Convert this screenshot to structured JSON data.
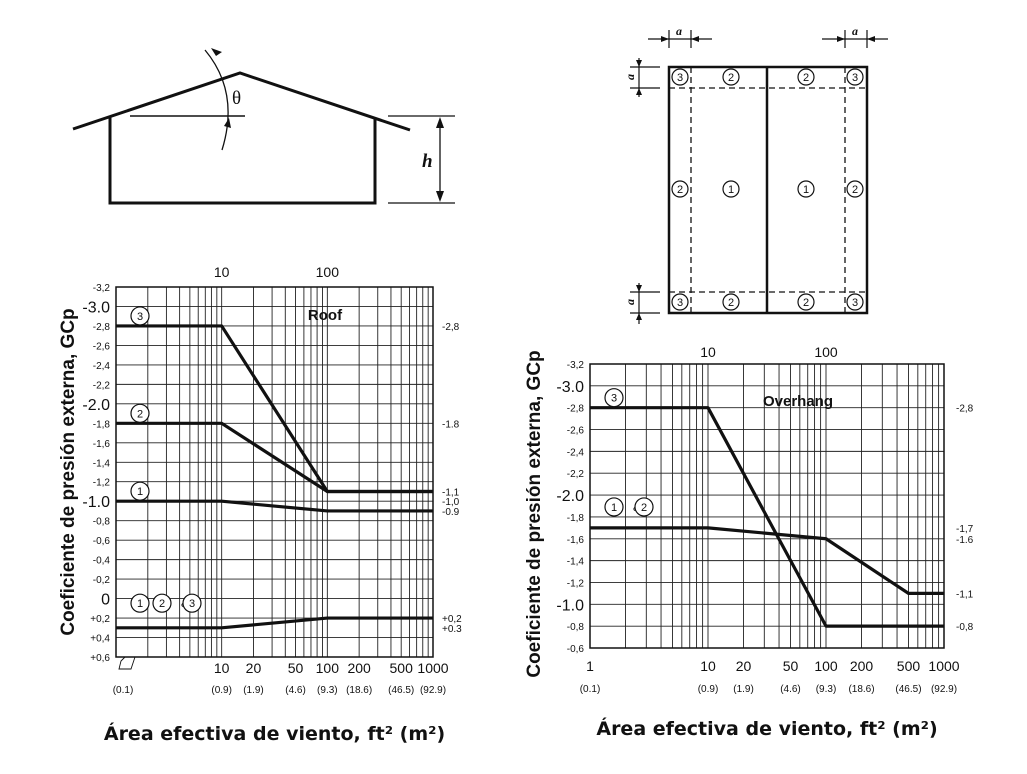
{
  "theta_label": "θ",
  "h_label": "h",
  "a_label": "a",
  "zone_labels": {
    "z1": "1",
    "z2": "2",
    "z3": "3"
  },
  "chart_data": [
    {
      "type": "line",
      "x_scale": "log",
      "title": "Roof",
      "ylabel": "Coeficiente de presión externa, GCp",
      "xlabel": "Área efectiva de viento, ft² (m²)",
      "xlim": [
        1,
        1000
      ],
      "ylim": [
        -3.2,
        0.6
      ],
      "y_reversed": true,
      "top_ticks": [
        "10",
        "100"
      ],
      "x_ticks": [
        {
          "x": 10,
          "label": "10",
          "sub": "(0.9)"
        },
        {
          "x": 20,
          "label": "20",
          "sub": "(1.9)"
        },
        {
          "x": 50,
          "label": "50",
          "sub": "(4.6)"
        },
        {
          "x": 100,
          "label": "100",
          "sub": "(9.3)"
        },
        {
          "x": 200,
          "label": "200",
          "sub": "(18.6)"
        },
        {
          "x": 500,
          "label": "500",
          "sub": "(46.5)"
        },
        {
          "x": 1000,
          "label": "1000",
          "sub": "(92.9)"
        }
      ],
      "x1_sub": "(0.1)",
      "y_ticks": [
        "-3,2",
        "-3.0",
        "-2,8",
        "-2,6",
        "-2,4",
        "-2,2",
        "-2.0",
        "-1,8",
        "-1,6",
        "-1,4",
        "-1,2",
        "-1.0",
        "-0,8",
        "-0,6",
        "-0,4",
        "-0,2",
        "0",
        "+0,2",
        "+0,4",
        "+0,6"
      ],
      "y_tick_values": [
        -3.2,
        -3.0,
        -2.8,
        -2.6,
        -2.4,
        -2.2,
        -2.0,
        -1.8,
        -1.6,
        -1.4,
        -1.2,
        -1.0,
        -0.8,
        -0.6,
        -0.4,
        -0.2,
        0,
        0.2,
        0.4,
        0.6
      ],
      "right_labels": [
        {
          "y": -2.8,
          "text": "-2,8"
        },
        {
          "y": -1.8,
          "text": "-1.8"
        },
        {
          "y": -1.1,
          "text": "-1,1"
        },
        {
          "y": -1.0,
          "text": "-1,0"
        },
        {
          "y": -0.9,
          "text": "-0.9"
        },
        {
          "y": 0.2,
          "text": "+0,2"
        },
        {
          "y": 0.3,
          "text": "+0.3"
        }
      ],
      "series": [
        {
          "x": [
            1,
            10,
            100,
            1000
          ],
          "y": [
            -2.8,
            -2.8,
            -1.1,
            -1.1
          ]
        },
        {
          "x": [
            1,
            10,
            100,
            1000
          ],
          "y": [
            -1.8,
            -1.8,
            -1.1,
            -1.1
          ]
        },
        {
          "x": [
            1,
            10,
            100,
            1000
          ],
          "y": [
            -1.0,
            -1.0,
            -0.9,
            -0.9
          ]
        },
        {
          "x": [
            1,
            10,
            100,
            1000
          ],
          "y": [
            0.3,
            0.3,
            0.2,
            0.2
          ]
        }
      ],
      "series_tags": [
        {
          "y": -2.8,
          "circles": [
            "3"
          ],
          "amp": ""
        },
        {
          "y": -1.8,
          "circles": [
            "2"
          ],
          "amp": ""
        },
        {
          "y": -1.0,
          "circles": [
            "1"
          ],
          "amp": ""
        },
        {
          "y": 0.15,
          "circles": [
            "1",
            "2",
            "3"
          ],
          "amp": "&"
        }
      ]
    },
    {
      "type": "line",
      "x_scale": "log",
      "title": "Overhang",
      "ylabel": "Coeficiente de presión externa, GCp",
      "xlabel": "Área efectiva de viento, ft² (m²)",
      "xlim": [
        1,
        1000
      ],
      "ylim": [
        -3.2,
        -0.6
      ],
      "y_reversed": true,
      "top_ticks": [
        "10",
        "100"
      ],
      "x_ticks": [
        {
          "x": 1,
          "label": "1",
          "sub": "(0.1)"
        },
        {
          "x": 10,
          "label": "10",
          "sub": "(0.9)"
        },
        {
          "x": 20,
          "label": "20",
          "sub": "(1.9)"
        },
        {
          "x": 50,
          "label": "50",
          "sub": "(4.6)"
        },
        {
          "x": 100,
          "label": "100",
          "sub": "(9.3)"
        },
        {
          "x": 200,
          "label": "200",
          "sub": "(18.6)"
        },
        {
          "x": 500,
          "label": "500",
          "sub": "(46.5)"
        },
        {
          "x": 1000,
          "label": "1000",
          "sub": "(92.9)"
        }
      ],
      "y_ticks": [
        "-3,2",
        "-3.0",
        "-2,8",
        "-2,6",
        "-2,4",
        "-2,2",
        "-2.0",
        "-1,8",
        "-1,6",
        "-1,4",
        "-1,2",
        "-1.0",
        "-0,8",
        "-0,6"
      ],
      "y_tick_values": [
        -3.2,
        -3.0,
        -2.8,
        -2.6,
        -2.4,
        -2.2,
        -2.0,
        -1.8,
        -1.6,
        -1.4,
        -1.2,
        -1.0,
        -0.8,
        -0.6
      ],
      "right_labels": [
        {
          "y": -2.8,
          "text": "-2,8"
        },
        {
          "y": -1.7,
          "text": "-1,7"
        },
        {
          "y": -1.6,
          "text": "-1.6"
        },
        {
          "y": -1.1,
          "text": "-1,1"
        },
        {
          "y": -0.8,
          "text": "-0,8"
        }
      ],
      "series": [
        {
          "x": [
            1,
            10,
            100,
            1000
          ],
          "y": [
            -2.8,
            -2.8,
            -0.8,
            -0.8
          ]
        },
        {
          "x": [
            1,
            10,
            100,
            500,
            1000
          ],
          "y": [
            -1.7,
            -1.7,
            -1.6,
            -1.1,
            -1.1
          ]
        }
      ],
      "series_tags": [
        {
          "y": -2.8,
          "circles": [
            "3"
          ],
          "amp": ""
        },
        {
          "y": -1.8,
          "circles": [
            "1",
            "2"
          ],
          "amp": "&"
        }
      ]
    }
  ]
}
